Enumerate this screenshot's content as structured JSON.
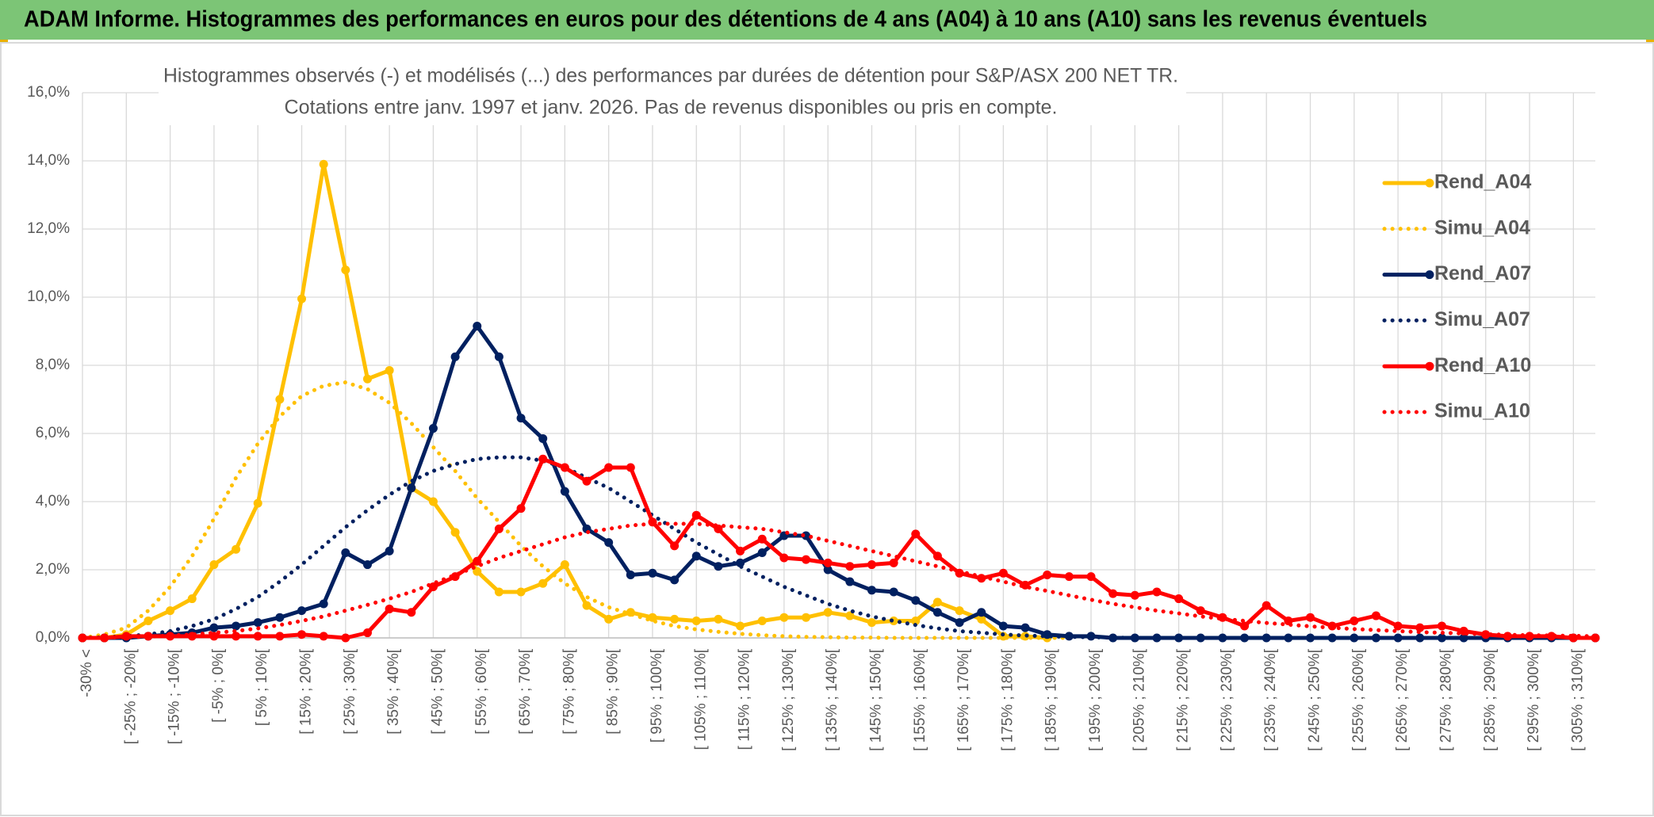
{
  "header": {
    "title": "ADAM Informe. Histogrammes des performances en euros pour des détentions de 4 ans (A04) à 10 ans (A10) sans les revenus éventuels"
  },
  "chart_data": {
    "type": "line",
    "title": [
      "Histogrammes observés (-) et modélisés (...) des performances par durées de détention pour S&P/ASX 200 NET TR.",
      "Cotations entre janv. 1997 et janv. 2026. Pas de revenus disponibles ou pris en compte."
    ],
    "categories": [
      "-30% <",
      null,
      "[ -25% ; -20%[",
      null,
      "[ -15% ; -10%[",
      null,
      "[ -5% ; 0%[",
      null,
      "[ 5% ; 10%[",
      null,
      "[ 15% ; 20%[",
      null,
      "[ 25% ; 30%[",
      null,
      "[ 35% ; 40%[",
      null,
      "[ 45% ; 50%[",
      null,
      "[ 55% ; 60%[",
      null,
      "[ 65% ; 70%[",
      null,
      "[ 75% ; 80%[",
      null,
      "[ 85% ; 90%[",
      null,
      "[ 95% ; 100%[",
      null,
      "[ 105% ; 110%[",
      null,
      "[ 115% ; 120%[",
      null,
      "[ 125% ; 130%[",
      null,
      "[ 135% ; 140%[",
      null,
      "[ 145% ; 150%[",
      null,
      "[ 155% ; 160%[",
      null,
      "[ 165% ; 170%[",
      null,
      "[ 175% ; 180%[",
      null,
      "[ 185% ; 190%[",
      null,
      "[ 195% ; 200%[",
      null,
      "[ 205% ; 210%[",
      null,
      "[ 215% ; 220%[",
      null,
      "[ 225% ; 230%[",
      null,
      "[ 235% ; 240%[",
      null,
      "[ 245% ; 250%[",
      null,
      "[ 255% ; 260%[",
      null,
      "[ 265% ; 270%[",
      null,
      "[ 275% ; 280%[",
      null,
      "[ 285% ; 290%[",
      null,
      "[ 295% ; 300%[",
      null,
      "[ 305% ; 310%[",
      null
    ],
    "series": [
      {
        "name": "Rend_A04",
        "color": "#FFC000",
        "line_style": "solid",
        "markers": true,
        "values": [
          0,
          0,
          0.1,
          0.5,
          0.8,
          1.15,
          2.15,
          2.6,
          3.95,
          7.0,
          9.95,
          13.9,
          10.8,
          7.6,
          7.85,
          4.4,
          4.0,
          3.1,
          1.95,
          1.35,
          1.35,
          1.6,
          2.15,
          0.95,
          0.55,
          0.75,
          0.6,
          0.55,
          0.5,
          0.55,
          0.35,
          0.5,
          0.6,
          0.6,
          0.75,
          0.65,
          0.45,
          0.5,
          0.5,
          1.05,
          0.8,
          0.55,
          0.05,
          0.05,
          0,
          null,
          null,
          null,
          null,
          null,
          null,
          null,
          null,
          null,
          null,
          null,
          null,
          null,
          null,
          null,
          null,
          null,
          null,
          null,
          null,
          null,
          null,
          null,
          null,
          null
        ]
      },
      {
        "name": "Simu_A04",
        "color": "#FFC000",
        "line_style": "dotted",
        "markers": false,
        "values": [
          0,
          0.1,
          0.3,
          0.8,
          1.5,
          2.4,
          3.5,
          4.7,
          5.7,
          6.5,
          7.1,
          7.4,
          7.5,
          7.3,
          6.9,
          6.3,
          5.6,
          4.9,
          4.1,
          3.4,
          2.7,
          2.1,
          1.6,
          1.2,
          0.9,
          0.7,
          0.5,
          0.35,
          0.25,
          0.18,
          0.12,
          0.08,
          0.05,
          0.03,
          0.02,
          0.01,
          0.01,
          0,
          0,
          0,
          0,
          0,
          0,
          0,
          0,
          0,
          null,
          null,
          null,
          null,
          null,
          null,
          null,
          null,
          null,
          null,
          null,
          null,
          null,
          null,
          null,
          null,
          null,
          null,
          null,
          null,
          null,
          null,
          null,
          null
        ]
      },
      {
        "name": "Rend_A07",
        "color": "#002060",
        "line_style": "solid",
        "markers": true,
        "values": [
          0,
          0,
          0,
          0.05,
          0.1,
          0.15,
          0.3,
          0.35,
          0.45,
          0.6,
          0.8,
          1.0,
          2.5,
          2.15,
          2.55,
          4.4,
          6.15,
          8.25,
          9.15,
          8.25,
          6.45,
          5.85,
          4.3,
          3.2,
          2.8,
          1.85,
          1.9,
          1.7,
          2.4,
          2.1,
          2.2,
          2.5,
          3.0,
          3.0,
          2.0,
          1.65,
          1.4,
          1.35,
          1.1,
          0.75,
          0.45,
          0.75,
          0.35,
          0.3,
          0.1,
          0.05,
          0.05,
          0,
          0,
          0,
          0,
          0,
          0,
          0,
          0,
          0,
          0,
          0,
          0,
          0,
          0,
          0,
          0,
          0,
          0,
          0,
          0,
          0,
          0,
          0
        ]
      },
      {
        "name": "Simu_A07",
        "color": "#002060",
        "line_style": "dotted",
        "markers": false,
        "values": [
          0,
          0.02,
          0.05,
          0.1,
          0.2,
          0.35,
          0.55,
          0.85,
          1.2,
          1.65,
          2.15,
          2.7,
          3.25,
          3.75,
          4.2,
          4.6,
          4.9,
          5.1,
          5.25,
          5.3,
          5.3,
          5.2,
          5.0,
          4.7,
          4.4,
          4.0,
          3.6,
          3.2,
          2.8,
          2.45,
          2.1,
          1.8,
          1.5,
          1.25,
          1.0,
          0.8,
          0.63,
          0.5,
          0.38,
          0.28,
          0.2,
          0.15,
          0.1,
          0.07,
          0.05,
          0.03,
          0.02,
          0.01,
          0,
          0,
          0,
          0,
          0,
          0,
          0,
          0,
          0,
          0,
          0,
          0,
          0,
          0,
          0,
          0,
          0,
          0,
          0,
          0,
          0,
          0
        ]
      },
      {
        "name": "Rend_A10",
        "color": "#FF0000",
        "line_style": "solid",
        "markers": true,
        "values": [
          0,
          0,
          0.05,
          0.05,
          0.05,
          0.05,
          0.05,
          0.05,
          0.05,
          0.05,
          0.1,
          0.05,
          0,
          0.15,
          0.85,
          0.75,
          1.5,
          1.8,
          2.25,
          3.2,
          3.8,
          5.25,
          5.0,
          4.6,
          5.0,
          5.0,
          3.4,
          2.7,
          3.6,
          3.2,
          2.55,
          2.9,
          2.35,
          2.3,
          2.2,
          2.1,
          2.15,
          2.2,
          3.05,
          2.4,
          1.9,
          1.75,
          1.9,
          1.55,
          1.85,
          1.8,
          1.8,
          1.3,
          1.25,
          1.35,
          1.15,
          0.8,
          0.6,
          0.35,
          0.95,
          0.5,
          0.6,
          0.35,
          0.5,
          0.65,
          0.35,
          0.3,
          0.35,
          0.2,
          0.1,
          0.05,
          0.05,
          0.05,
          0,
          0
        ]
      },
      {
        "name": "Simu_A10",
        "color": "#FF0000",
        "line_style": "dotted",
        "markers": false,
        "values": [
          0,
          0.01,
          0.02,
          0.04,
          0.07,
          0.1,
          0.15,
          0.2,
          0.28,
          0.38,
          0.5,
          0.63,
          0.8,
          0.97,
          1.15,
          1.35,
          1.6,
          1.85,
          2.1,
          2.35,
          2.55,
          2.75,
          2.95,
          3.1,
          3.2,
          3.3,
          3.35,
          3.35,
          3.35,
          3.3,
          3.25,
          3.2,
          3.1,
          3.0,
          2.85,
          2.7,
          2.55,
          2.4,
          2.25,
          2.1,
          1.95,
          1.8,
          1.65,
          1.5,
          1.38,
          1.25,
          1.12,
          1.0,
          0.9,
          0.8,
          0.72,
          0.63,
          0.56,
          0.5,
          0.44,
          0.39,
          0.34,
          0.3,
          0.26,
          0.23,
          0.2,
          0.17,
          0.15,
          0.13,
          0.11,
          0.09,
          0.08,
          0.07,
          0.06,
          0.05
        ]
      }
    ],
    "ylim": [
      0,
      16
    ],
    "yticks": [
      {
        "value": 0,
        "label": "0,0%"
      },
      {
        "value": 2,
        "label": "2,0%"
      },
      {
        "value": 4,
        "label": "4,0%"
      },
      {
        "value": 6,
        "label": "6,0%"
      },
      {
        "value": 8,
        "label": "8,0%"
      },
      {
        "value": 10,
        "label": "10,0%"
      },
      {
        "value": 12,
        "label": "12,0%"
      },
      {
        "value": 14,
        "label": "14,0%"
      },
      {
        "value": 16,
        "label": "16,0%"
      }
    ],
    "grid": true,
    "legend": "right"
  }
}
